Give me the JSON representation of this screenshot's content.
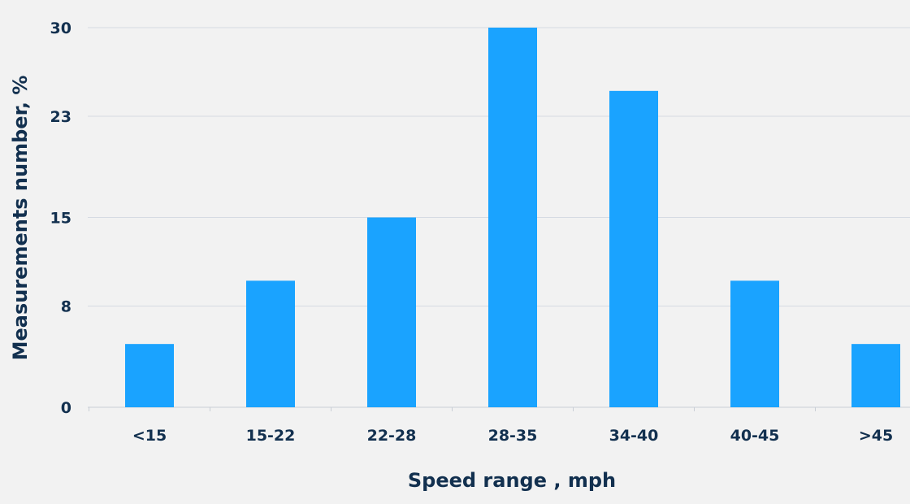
{
  "chart_data": {
    "type": "bar",
    "title": "",
    "xlabel": "Speed range , mph",
    "ylabel": "Measurements number, %",
    "categories": [
      "<15",
      "15-22",
      "22-28",
      "28-35",
      "34-40",
      "40-45",
      ">45"
    ],
    "values": [
      5,
      10,
      15,
      30,
      25,
      10,
      5
    ],
    "yticks": [
      0,
      8,
      15,
      23,
      30
    ],
    "ylim": [
      0,
      30
    ],
    "grid": true,
    "legend": "none",
    "colors": {
      "bar": "#1aa3ff",
      "text": "#12304f",
      "grid": "#d6dbe3",
      "axis": "#c9ced6",
      "background": "#f2f2f2"
    }
  }
}
